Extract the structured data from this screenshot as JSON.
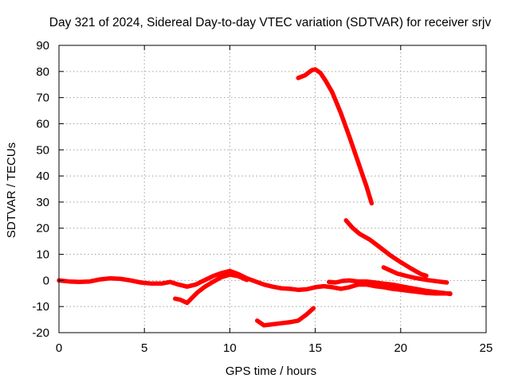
{
  "chart_data": {
    "type": "scatter",
    "title": "Day 321 of 2024, Sidereal Day-to-day VTEC variation (SDTVAR) for receiver srjv",
    "xlabel": "GPS time / hours",
    "ylabel": "SDTVAR / TECUs",
    "xlim": [
      0,
      25
    ],
    "ylim": [
      -20,
      90
    ],
    "xticks": [
      0,
      5,
      10,
      15,
      20,
      25
    ],
    "yticks": [
      -20,
      -10,
      0,
      10,
      20,
      30,
      40,
      50,
      60,
      70,
      80,
      90
    ],
    "grid": true,
    "legend": "none",
    "color": "#ff0000",
    "series": [
      {
        "name": "long-track",
        "points": [
          [
            0,
            0
          ],
          [
            0.6,
            -0.4
          ],
          [
            1.2,
            -0.6
          ],
          [
            1.8,
            -0.4
          ],
          [
            2.4,
            0.4
          ],
          [
            3,
            0.8
          ],
          [
            3.6,
            0.6
          ],
          [
            4.2,
            0
          ],
          [
            4.8,
            -0.8
          ],
          [
            5.4,
            -1.2
          ],
          [
            6,
            -1.2
          ],
          [
            6.5,
            -0.6
          ],
          [
            7,
            -1.6
          ],
          [
            7.5,
            -2.4
          ],
          [
            8,
            -1.6
          ],
          [
            8.5,
            0
          ],
          [
            9,
            1.6
          ],
          [
            9.5,
            2.8
          ],
          [
            10,
            3.6
          ],
          [
            10.5,
            2.4
          ],
          [
            11,
            0.8
          ],
          [
            11.5,
            -0.4
          ],
          [
            12,
            -1.6
          ],
          [
            12.5,
            -2.4
          ],
          [
            13,
            -3
          ],
          [
            13.5,
            -3.2
          ],
          [
            14,
            -3.6
          ],
          [
            14.5,
            -3.4
          ],
          [
            15,
            -2.6
          ],
          [
            15.5,
            -2.2
          ],
          [
            16,
            -2.6
          ],
          [
            16.5,
            -3.2
          ],
          [
            17,
            -2.6
          ],
          [
            17.5,
            -1.6
          ],
          [
            18,
            -1.6
          ],
          [
            18.5,
            -2.2
          ],
          [
            19,
            -2.6
          ],
          [
            19.5,
            -3.2
          ],
          [
            20,
            -3.6
          ],
          [
            20.5,
            -4
          ],
          [
            21,
            -4.4
          ],
          [
            21.5,
            -4.8
          ],
          [
            22,
            -5
          ],
          [
            22.5,
            -5
          ],
          [
            22.9,
            -5
          ]
        ]
      },
      {
        "name": "low-dip-track",
        "points": [
          [
            6.8,
            -7
          ],
          [
            7.1,
            -7.4
          ],
          [
            7.5,
            -8.6
          ],
          [
            7.8,
            -6.6
          ],
          [
            8.1,
            -4.6
          ],
          [
            8.5,
            -2.6
          ],
          [
            9,
            -0.6
          ],
          [
            9.5,
            1.2
          ],
          [
            10,
            2.2
          ],
          [
            10.5,
            1.6
          ],
          [
            11,
            0.2
          ]
        ]
      },
      {
        "name": "mid-track",
        "points": [
          [
            15.8,
            -0.6
          ],
          [
            16.2,
            -0.8
          ],
          [
            16.6,
            -0.2
          ],
          [
            17,
            0
          ],
          [
            17.5,
            -0.4
          ],
          [
            18,
            -0.4
          ],
          [
            18.5,
            -0.8
          ],
          [
            19,
            -1.2
          ],
          [
            19.5,
            -1.6
          ],
          [
            20,
            -2.2
          ],
          [
            20.5,
            -2.8
          ],
          [
            21,
            -3.4
          ],
          [
            21.5,
            -4
          ],
          [
            22,
            -4.4
          ],
          [
            22.5,
            -4.8
          ],
          [
            22.9,
            -5.2
          ]
        ]
      },
      {
        "name": "bottom-track",
        "points": [
          [
            11.6,
            -15.4
          ],
          [
            12,
            -17.2
          ],
          [
            12.5,
            -16.8
          ],
          [
            13,
            -16.4
          ],
          [
            13.5,
            -16
          ],
          [
            14,
            -15.4
          ],
          [
            14.5,
            -13
          ],
          [
            14.9,
            -10.6
          ]
        ]
      },
      {
        "name": "peak-track",
        "points": [
          [
            14,
            77.5
          ],
          [
            14.4,
            78.5
          ],
          [
            14.8,
            80.5
          ],
          [
            15,
            80.8
          ],
          [
            15.3,
            79.5
          ],
          [
            15.6,
            76.5
          ],
          [
            16,
            72
          ],
          [
            16.5,
            64
          ],
          [
            17,
            55
          ],
          [
            17.5,
            45.5
          ],
          [
            18,
            36
          ],
          [
            18.3,
            29.5
          ]
        ]
      },
      {
        "name": "decay-track-a",
        "points": [
          [
            16.8,
            23
          ],
          [
            17.2,
            20
          ],
          [
            17.6,
            17.8
          ],
          [
            18.2,
            15.6
          ],
          [
            18.8,
            12.6
          ],
          [
            19.4,
            9.6
          ],
          [
            20,
            7
          ],
          [
            20.6,
            4.6
          ],
          [
            21.2,
            2.4
          ],
          [
            21.5,
            1.8
          ]
        ]
      },
      {
        "name": "decay-track-b",
        "points": [
          [
            19,
            5
          ],
          [
            19.4,
            3.8
          ],
          [
            19.8,
            2.6
          ],
          [
            20.3,
            1.8
          ],
          [
            20.8,
            1
          ],
          [
            21.5,
            0.2
          ],
          [
            22.2,
            -0.4
          ],
          [
            22.7,
            -0.8
          ]
        ]
      }
    ]
  }
}
